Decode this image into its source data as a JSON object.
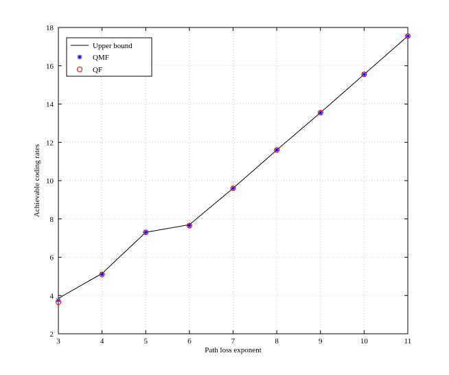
{
  "chart_data": {
    "type": "line",
    "title": "",
    "xlabel": "Path loss exponent",
    "ylabel": "Achievable coding rates",
    "xlim": [
      3,
      11
    ],
    "ylim": [
      2,
      18
    ],
    "xticks": [
      3,
      4,
      5,
      6,
      7,
      8,
      9,
      10,
      11
    ],
    "yticks": [
      2,
      4,
      6,
      8,
      10,
      12,
      14,
      16,
      18
    ],
    "grid": true,
    "legend_position": "top-left",
    "x": [
      3,
      4,
      5,
      6,
      7,
      8,
      9,
      10,
      11
    ],
    "series": [
      {
        "name": "Upper bound",
        "style": "line",
        "color": "#000000",
        "values": [
          3.85,
          5.15,
          7.3,
          7.7,
          9.6,
          11.6,
          13.55,
          15.55,
          17.55
        ]
      },
      {
        "name": "QMF",
        "style": "star-marker",
        "color": "#0000ff",
        "values": [
          3.75,
          5.1,
          7.3,
          7.65,
          9.6,
          11.6,
          13.55,
          15.55,
          17.55
        ]
      },
      {
        "name": "QF",
        "style": "circle-marker",
        "color": "#ff0000",
        "values": [
          3.65,
          5.1,
          7.3,
          7.65,
          9.6,
          11.6,
          13.55,
          15.55,
          17.55
        ]
      }
    ]
  }
}
